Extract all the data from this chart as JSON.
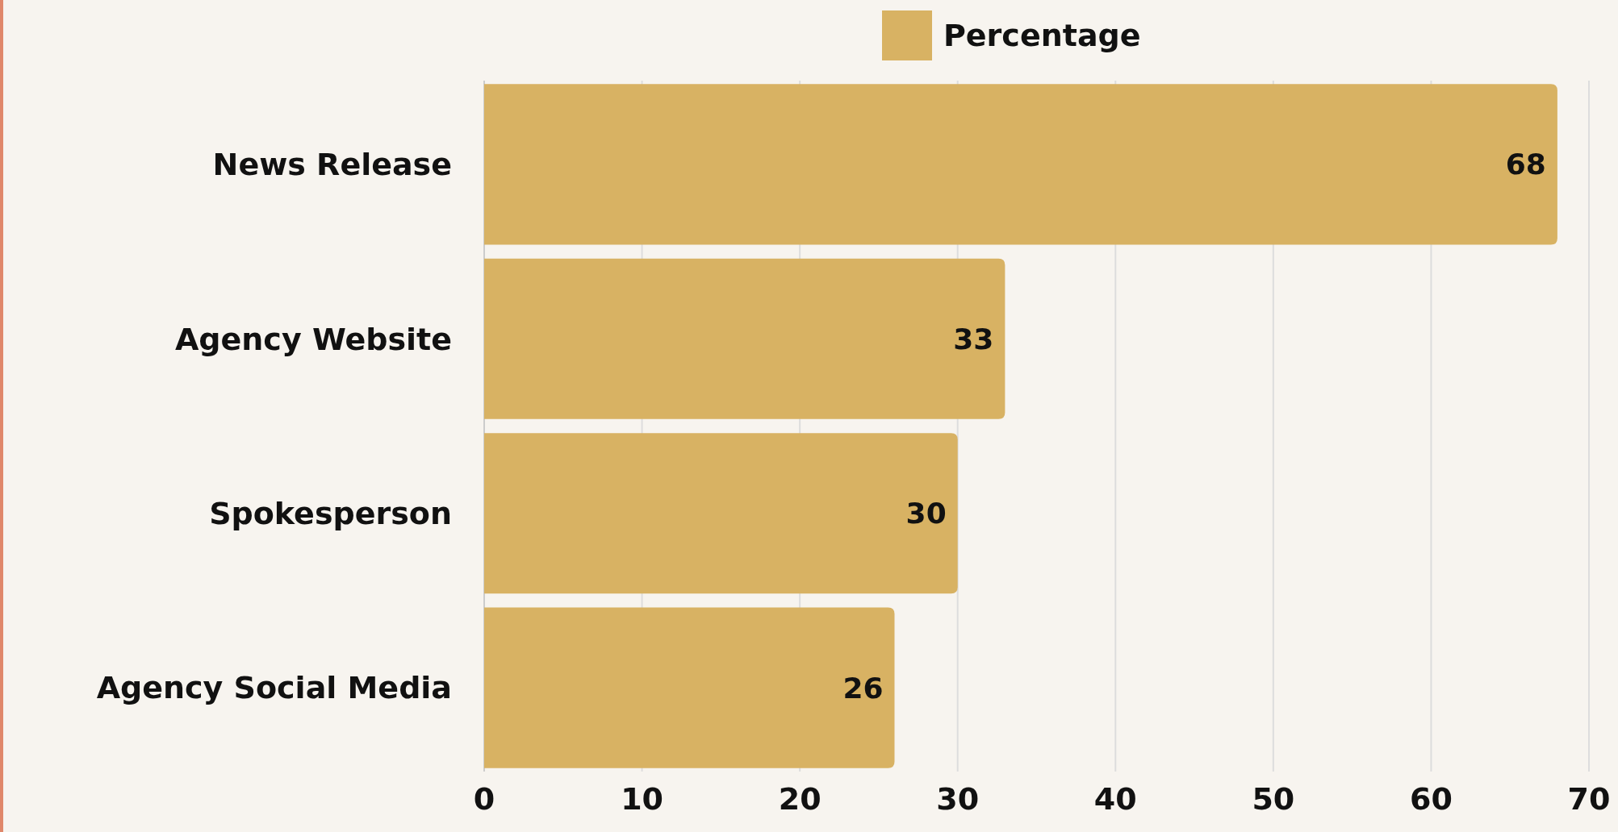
{
  "chart_data": {
    "type": "bar",
    "orientation": "horizontal",
    "categories": [
      "News Release",
      "Agency Website",
      "Spokesperson",
      "Agency Social Media"
    ],
    "series": [
      {
        "name": "Percentage",
        "color": "#d8b263",
        "values": [
          68,
          33,
          30,
          26
        ]
      }
    ],
    "xlim": [
      0,
      70
    ],
    "xticks": [
      0,
      10,
      20,
      30,
      40,
      50,
      60,
      70
    ],
    "grid": "x",
    "legend": "top",
    "data_labels": true
  }
}
